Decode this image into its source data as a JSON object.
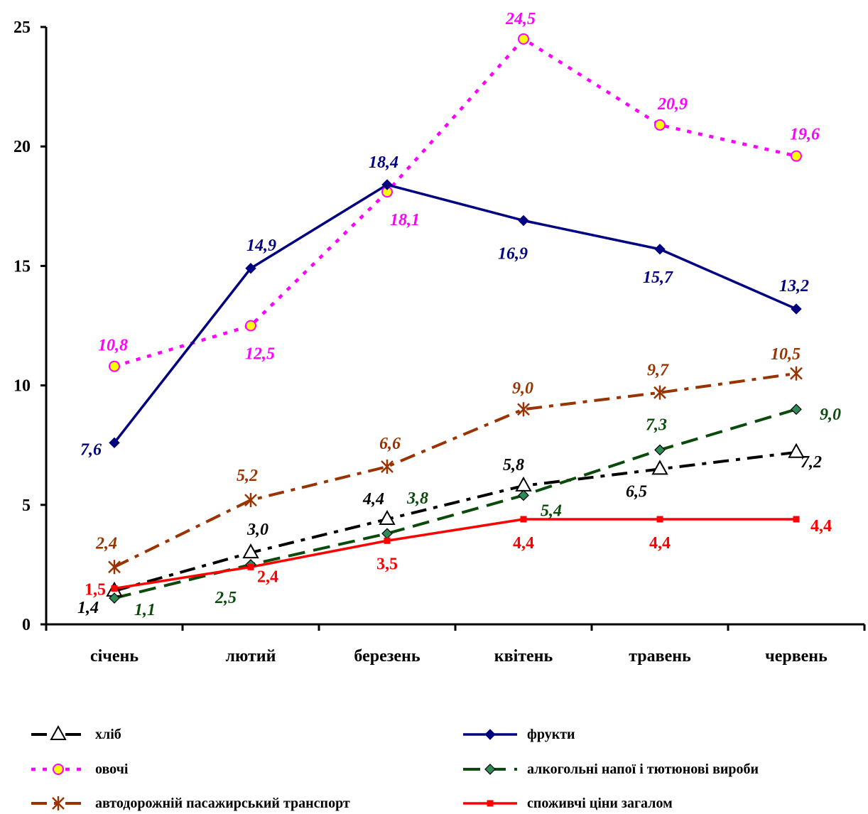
{
  "chart_data": {
    "type": "line",
    "categories": [
      "січень",
      "лютий",
      "березень",
      "квітень",
      "травень",
      "червень"
    ],
    "ylim": [
      0,
      25
    ],
    "yticks": [
      0,
      5,
      10,
      15,
      20,
      25
    ],
    "grid": false,
    "legend_position": "bottom",
    "series": [
      {
        "name": "хліб",
        "color": "#000000",
        "dash": "dashdot",
        "marker": "triangle-open",
        "values": [
          1.4,
          3.0,
          4.4,
          5.8,
          6.5,
          7.2
        ],
        "labels": [
          "1,4",
          "3,0",
          "4,4",
          "5,8",
          "6,5",
          "7,2"
        ]
      },
      {
        "name": "фрукти",
        "color": "#000080",
        "dash": "solid",
        "marker": "diamond",
        "values": [
          7.6,
          14.9,
          18.4,
          16.9,
          15.7,
          13.2
        ],
        "labels": [
          "7,6",
          "14,9",
          "18,4",
          "16,9",
          "15,7",
          "13,2"
        ]
      },
      {
        "name": "овочі",
        "color": "#ff00ff",
        "dash": "dotted",
        "marker": "circle-yellow",
        "values": [
          10.8,
          12.5,
          18.1,
          24.5,
          20.9,
          19.6
        ],
        "labels": [
          "10,8",
          "12,5",
          "18,1",
          "24,5",
          "20,9",
          "19,6"
        ]
      },
      {
        "name": "алкогольні напої і тютюнові вироби",
        "color": "#0a4a0a",
        "dash": "longdash",
        "marker": "diamond-green",
        "values": [
          1.1,
          2.5,
          3.8,
          5.4,
          7.3,
          9.0
        ],
        "labels": [
          "1,1",
          "2,5",
          "3,8",
          "5,4",
          "7,3",
          "9,0"
        ]
      },
      {
        "name": "автодорожній пасажирський транспорт",
        "color": "#993300",
        "dash": "dashdot",
        "marker": "star",
        "values": [
          2.4,
          5.2,
          6.6,
          9.0,
          9.7,
          10.5
        ],
        "labels": [
          "2,4",
          "5,2",
          "6,6",
          "9,0",
          "9,7",
          "10,5"
        ]
      },
      {
        "name": "споживчі ціни загалом",
        "color": "#ff0000",
        "dash": "solid",
        "marker": "square",
        "values": [
          1.5,
          2.4,
          3.5,
          4.4,
          4.4,
          4.4
        ],
        "labels": [
          "1,5",
          "2,4",
          "3,5",
          "4,4",
          "4,4",
          "4,4"
        ]
      }
    ]
  }
}
